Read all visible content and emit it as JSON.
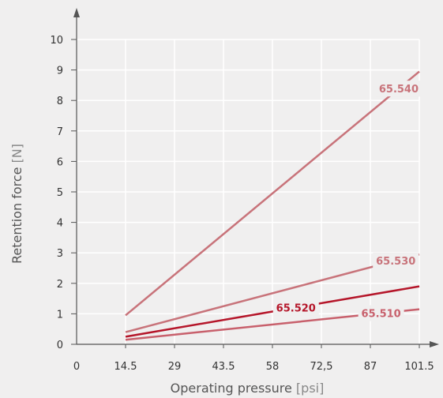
{
  "chart_data": {
    "type": "line",
    "title": "",
    "xlabel": "Operating pressure",
    "xlabel_unit": "psi",
    "ylabel": "Retention force",
    "ylabel_unit": "N",
    "x_ticks": [
      "0",
      "14.5",
      "29",
      "43.5",
      "58",
      "72,5",
      "87",
      "101.5"
    ],
    "x_values": [
      0,
      14.5,
      29,
      43.5,
      58,
      72.5,
      87,
      101.5
    ],
    "y_ticks": [
      "0",
      "1",
      "2",
      "3",
      "4",
      "5",
      "6",
      "7",
      "8",
      "9",
      "10"
    ],
    "xlim": [
      0,
      101.5
    ],
    "ylim": [
      0,
      10
    ],
    "grid": true,
    "series": [
      {
        "name": "65.540",
        "color": "#c8737a",
        "x": [
          14.5,
          101.5
        ],
        "y": [
          0.95,
          8.95
        ],
        "label_at": 0.93
      },
      {
        "name": "65.530",
        "color": "#c8737a",
        "x": [
          14.5,
          101.5
        ],
        "y": [
          0.4,
          2.95
        ],
        "label_at": 0.92
      },
      {
        "name": "65.520",
        "color": "#b5162a",
        "x": [
          14.5,
          101.5
        ],
        "y": [
          0.25,
          1.9
        ],
        "label_at": 0.58
      },
      {
        "name": "65.510",
        "color": "#c8606c",
        "x": [
          14.5,
          101.5
        ],
        "y": [
          0.15,
          1.15
        ],
        "label_at": 0.87
      }
    ]
  }
}
